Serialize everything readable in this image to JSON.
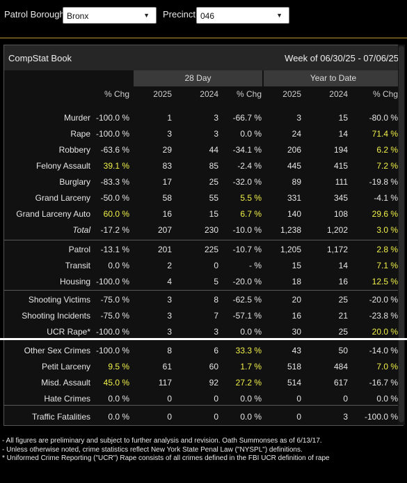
{
  "filters": {
    "borough_label": "Patrol Borough:",
    "borough_value": "Bronx",
    "precinct_label": "Precinct:",
    "precinct_value": "046"
  },
  "panel": {
    "title": "CompStat Book",
    "week": "Week of 06/30/25 - 07/06/25"
  },
  "groups": {
    "day28": "28 Day",
    "ytd": "Year to Date"
  },
  "columns": [
    "% Chg",
    "2025",
    "2024",
    "% Chg",
    "2025",
    "2024",
    "% Chg"
  ],
  "rows": [
    {
      "label": "Murder",
      "v": [
        "-100.0 %",
        "1",
        "3",
        "-66.7 %",
        "3",
        "15",
        "-80.0 %"
      ],
      "hl": [
        0,
        0,
        0,
        0,
        0,
        0,
        0
      ]
    },
    {
      "label": "Rape",
      "v": [
        "-100.0 %",
        "3",
        "3",
        "0.0 %",
        "24",
        "14",
        "71.4 %"
      ],
      "hl": [
        0,
        0,
        0,
        0,
        0,
        0,
        1
      ]
    },
    {
      "label": "Robbery",
      "v": [
        "-63.6 %",
        "29",
        "44",
        "-34.1 %",
        "206",
        "194",
        "6.2 %"
      ],
      "hl": [
        0,
        0,
        0,
        0,
        0,
        0,
        1
      ]
    },
    {
      "label": "Felony Assault",
      "v": [
        "39.1 %",
        "83",
        "85",
        "-2.4 %",
        "445",
        "415",
        "7.2 %"
      ],
      "hl": [
        1,
        0,
        0,
        0,
        0,
        0,
        1
      ]
    },
    {
      "label": "Burglary",
      "v": [
        "-83.3 %",
        "17",
        "25",
        "-32.0 %",
        "89",
        "111",
        "-19.8 %"
      ],
      "hl": [
        0,
        0,
        0,
        0,
        0,
        0,
        0
      ]
    },
    {
      "label": "Grand Larceny",
      "v": [
        "-50.0 %",
        "58",
        "55",
        "5.5 %",
        "331",
        "345",
        "-4.1 %"
      ],
      "hl": [
        0,
        0,
        0,
        1,
        0,
        0,
        0
      ]
    },
    {
      "label": "Grand Larceny Auto",
      "v": [
        "60.0 %",
        "16",
        "15",
        "6.7 %",
        "140",
        "108",
        "29.6 %"
      ],
      "hl": [
        1,
        0,
        0,
        1,
        0,
        0,
        1
      ]
    },
    {
      "label": "Total",
      "v": [
        "-17.2 %",
        "207",
        "230",
        "-10.0 %",
        "1,238",
        "1,202",
        "3.0 %"
      ],
      "hl": [
        0,
        0,
        0,
        0,
        0,
        0,
        1
      ],
      "italic": true
    },
    {
      "label": "Patrol",
      "v": [
        "-13.1 %",
        "201",
        "225",
        "-10.7 %",
        "1,205",
        "1,172",
        "2.8 %"
      ],
      "hl": [
        0,
        0,
        0,
        0,
        0,
        0,
        1
      ]
    },
    {
      "label": "Transit",
      "v": [
        "0.0 %",
        "2",
        "0",
        "- %",
        "15",
        "14",
        "7.1 %"
      ],
      "hl": [
        0,
        0,
        0,
        0,
        0,
        0,
        1
      ]
    },
    {
      "label": "Housing",
      "v": [
        "-100.0 %",
        "4",
        "5",
        "-20.0 %",
        "18",
        "16",
        "12.5 %"
      ],
      "hl": [
        0,
        0,
        0,
        0,
        0,
        0,
        1
      ]
    },
    {
      "label": "Shooting Victims",
      "v": [
        "-75.0 %",
        "3",
        "8",
        "-62.5 %",
        "20",
        "25",
        "-20.0 %"
      ],
      "hl": [
        0,
        0,
        0,
        0,
        0,
        0,
        0
      ]
    },
    {
      "label": "Shooting Incidents",
      "v": [
        "-75.0 %",
        "3",
        "7",
        "-57.1 %",
        "16",
        "21",
        "-23.8 %"
      ],
      "hl": [
        0,
        0,
        0,
        0,
        0,
        0,
        0
      ]
    },
    {
      "label": "UCR Rape*",
      "v": [
        "-100.0 %",
        "3",
        "3",
        "0.0 %",
        "30",
        "25",
        "20.0 %"
      ],
      "hl": [
        0,
        0,
        0,
        0,
        0,
        0,
        1
      ]
    },
    {
      "label": "Other Sex Crimes",
      "v": [
        "-100.0 %",
        "8",
        "6",
        "33.3 %",
        "43",
        "50",
        "-14.0 %"
      ],
      "hl": [
        0,
        0,
        0,
        1,
        0,
        0,
        0
      ]
    },
    {
      "label": "Petit Larceny",
      "v": [
        "9.5 %",
        "61",
        "60",
        "1.7 %",
        "518",
        "484",
        "7.0 %"
      ],
      "hl": [
        1,
        0,
        0,
        1,
        0,
        0,
        1
      ]
    },
    {
      "label": "Misd. Assault",
      "v": [
        "45.0 %",
        "117",
        "92",
        "27.2 %",
        "514",
        "617",
        "-16.7 %"
      ],
      "hl": [
        1,
        0,
        0,
        1,
        0,
        0,
        0
      ]
    },
    {
      "label": "Hate Crimes",
      "v": [
        "0.0 %",
        "0",
        "0",
        "0.0 %",
        "0",
        "0",
        "0.0 %"
      ],
      "hl": [
        0,
        0,
        0,
        0,
        0,
        0,
        0
      ]
    },
    {
      "label": "Traffic Fatalities",
      "v": [
        "0.0 %",
        "0",
        "0",
        "0.0 %",
        "0",
        "3",
        "-100.0 %"
      ],
      "hl": [
        0,
        0,
        0,
        0,
        0,
        0,
        0
      ]
    }
  ],
  "footer": [
    "- All figures are preliminary and subject to further analysis and revision. Oath Summonses as of 6/13/17.",
    "- Unless otherwise noted, crime statistics reflect New York State Penal Law (\"NYSPL\") definitions.",
    "* Uniformed Crime Reporting (\"UCR\") Rape consists of all crimes defined in the FBI UCR definition of rape"
  ],
  "colors": {
    "highlight": "#f2f24a",
    "accent": "#b89a33"
  }
}
